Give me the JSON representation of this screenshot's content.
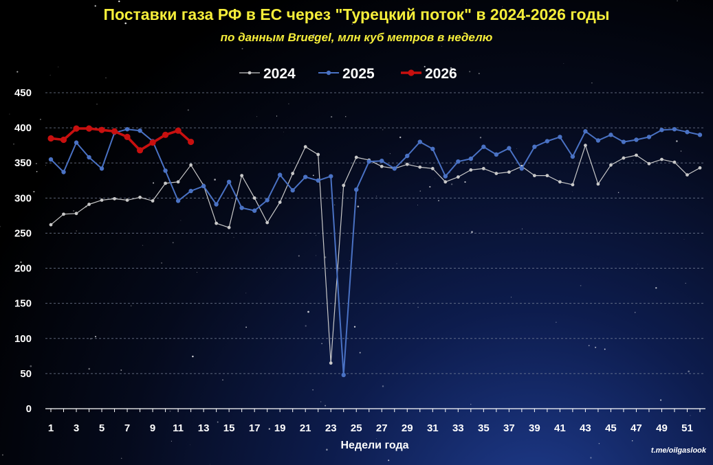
{
  "chart_data": {
    "type": "line",
    "title": "Поставки газа РФ в ЕС через \"Турецкий поток\" в 2024-2026 годы",
    "subtitle": "по данным Bruegel, млн куб метров в неделю",
    "xlabel": "Недели года",
    "credit": "t.me/oilgaslook",
    "ylim": [
      0,
      450
    ],
    "yticks": [
      0,
      50,
      100,
      150,
      200,
      250,
      300,
      350,
      400,
      450
    ],
    "xlim": [
      1,
      52
    ],
    "xticks": [
      1,
      3,
      5,
      7,
      9,
      11,
      13,
      15,
      17,
      19,
      21,
      23,
      25,
      27,
      29,
      31,
      33,
      35,
      37,
      39,
      41,
      43,
      45,
      47,
      49,
      51
    ],
    "grid": true,
    "legend_position": "top-center",
    "series": [
      {
        "name": "2024",
        "color": "#c9c9c9",
        "values": [
          262,
          277,
          278,
          291,
          297,
          299,
          297,
          301,
          296,
          321,
          323,
          347,
          318,
          264,
          258,
          332,
          300,
          265,
          294,
          335,
          373,
          362,
          65,
          318,
          358,
          354,
          345,
          342,
          348,
          344,
          342,
          323,
          330,
          340,
          342,
          335,
          337,
          345,
          332,
          332,
          323,
          319,
          375,
          320,
          347,
          357,
          361,
          349,
          355,
          351,
          333,
          343
        ]
      },
      {
        "name": "2025",
        "color": "#4a72c4",
        "values": [
          355,
          337,
          379,
          358,
          342,
          393,
          398,
          396,
          381,
          339,
          296,
          310,
          317,
          291,
          323,
          286,
          282,
          297,
          333,
          311,
          330,
          325,
          331,
          48,
          312,
          352,
          353,
          342,
          360,
          380,
          370,
          331,
          352,
          356,
          373,
          362,
          371,
          342,
          373,
          381,
          387,
          359,
          395,
          382,
          390,
          380,
          383,
          387,
          397,
          398,
          394,
          390
        ]
      },
      {
        "name": "2026",
        "color": "#c8100f",
        "values": [
          385,
          383,
          399,
          399,
          397,
          395,
          387,
          368,
          379,
          390,
          396,
          380
        ]
      }
    ]
  }
}
